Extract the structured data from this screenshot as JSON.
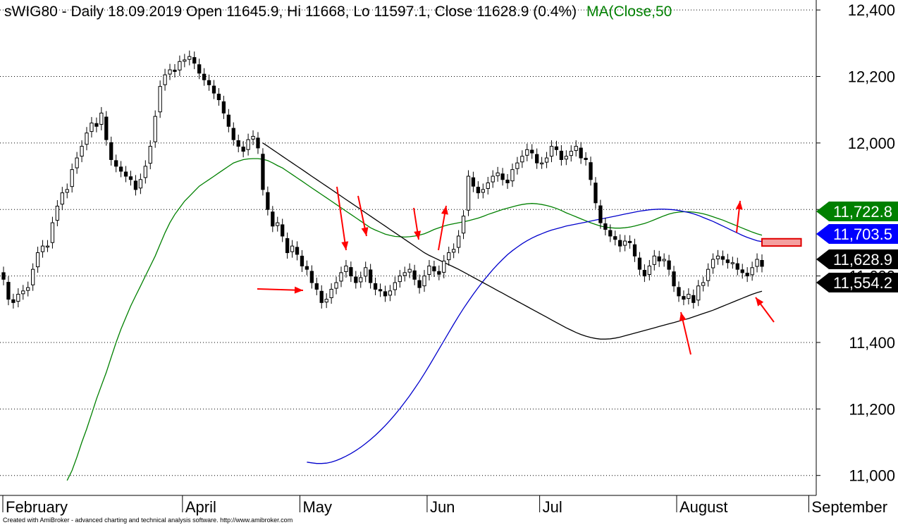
{
  "title": {
    "main": "sWIG80 - Daily 18.09.2019 Open 11645.9, Hi 11668, Lo 11597.1, Close 11628.9 (0.4%)",
    "ma": "MA(Close,50"
  },
  "footer": "Created with AmiBroker - advanced charting and technical analysis software. http://www.amibroker.com",
  "colors": {
    "ma50": "#008000",
    "ma_blue": "#0000cc",
    "ma_black": "#000000",
    "annotation": "#ff0000",
    "price_tag_green": "#008000",
    "price_tag_blue": "#0000ff",
    "price_tag_black": "#000000"
  },
  "chart_data": {
    "type": "candlestick",
    "ylim": [
      10940,
      12430
    ],
    "yticks": [
      11000,
      11200,
      11400,
      11600,
      11800,
      12000,
      12200,
      12400
    ],
    "ytick_labels": [
      "11,000",
      "11,200",
      "11,400",
      "11,600",
      "11,800",
      "12,000",
      "12,200",
      "12,400"
    ],
    "grid": "dotted horizontal",
    "months": [
      {
        "label": "February",
        "start": 0
      },
      {
        "label": "April",
        "start": 37
      },
      {
        "label": "May",
        "start": 61
      },
      {
        "label": "Jun",
        "start": 87
      },
      {
        "label": "Jul",
        "start": 110
      },
      {
        "label": "August",
        "start": 138
      },
      {
        "label": "September",
        "start": 165
      }
    ],
    "close": [
      11590,
      11530,
      11520,
      11545,
      11555,
      11565,
      11620,
      11670,
      11690,
      11690,
      11760,
      11810,
      11850,
      11860,
      11920,
      11955,
      11990,
      12030,
      12060,
      12050,
      12090,
      12010,
      11950,
      11930,
      11915,
      11900,
      11890,
      11860,
      11890,
      11930,
      11990,
      12080,
      12170,
      12205,
      12220,
      12215,
      12245,
      12250,
      12260,
      12240,
      12210,
      12190,
      12175,
      12150,
      12130,
      12090,
      12050,
      12010,
      11990,
      11975,
      12010,
      12020,
      11985,
      11860,
      11800,
      11750,
      11760,
      11720,
      11670,
      11690,
      11665,
      11630,
      11620,
      11580,
      11560,
      11520,
      11530,
      11560,
      11580,
      11610,
      11630,
      11600,
      11580,
      11595,
      11625,
      11580,
      11560,
      11555,
      11540,
      11555,
      11580,
      11600,
      11610,
      11620,
      11590,
      11565,
      11600,
      11630,
      11615,
      11605,
      11645,
      11670,
      11680,
      11720,
      11780,
      11900,
      11870,
      11850,
      11860,
      11880,
      11900,
      11910,
      11890,
      11880,
      11920,
      11940,
      11960,
      11980,
      11970,
      11940,
      11940,
      11955,
      11990,
      11980,
      11950,
      11960,
      11975,
      11990,
      11955,
      11950,
      11890,
      11820,
      11760,
      11740,
      11720,
      11710,
      11690,
      11705,
      11700,
      11660,
      11620,
      11600,
      11630,
      11660,
      11645,
      11650,
      11620,
      11570,
      11540,
      11530,
      11545,
      11520,
      11570,
      11580,
      11620,
      11650,
      11660,
      11650,
      11640,
      11640,
      11620,
      11610,
      11600,
      11625,
      11650,
      11628.9
    ],
    "series": [
      {
        "name": "MA(Close,50)",
        "color": "#008000",
        "values": [
          10985,
          11015,
          11055,
          11100,
          11140,
          11185,
          11230,
          11270,
          11310,
          11355,
          11400,
          11440,
          11475,
          11510,
          11540,
          11570,
          11600,
          11630,
          11660,
          11695,
          11730,
          11760,
          11785,
          11805,
          11825,
          11840,
          11855,
          11870,
          11880,
          11890,
          11900,
          11910,
          11920,
          11930,
          11940,
          11945,
          11950,
          11952,
          11953,
          11953,
          11951,
          11947,
          11940,
          11932,
          11925,
          11915,
          11905,
          11895,
          11885,
          11875,
          11865,
          11855,
          11845,
          11835,
          11825,
          11815,
          11805,
          11795,
          11785,
          11775,
          11765,
          11755,
          11745,
          11738,
          11732,
          11726,
          11722,
          11719,
          11718,
          11717,
          11718,
          11720,
          11723,
          11727,
          11733,
          11740,
          11745,
          11750,
          11754,
          11757,
          11760,
          11763,
          11766,
          11770,
          11774,
          11779,
          11785,
          11790,
          11795,
          11800,
          11804,
          11808,
          11812,
          11815,
          11817,
          11818,
          11817,
          11815,
          11812,
          11808,
          11803,
          11797,
          11790,
          11784,
          11778,
          11772,
          11766,
          11760,
          11755,
          11750,
          11747,
          11745,
          11744,
          11744,
          11745,
          11747,
          11750,
          11754,
          11758,
          11763,
          11769,
          11775,
          11781,
          11786,
          11790,
          11792,
          11793,
          11793,
          11792,
          11790,
          11787,
          11783,
          11778,
          11773,
          11768,
          11762,
          11756,
          11750,
          11744,
          11738,
          11732,
          11727,
          11722.8
        ]
      },
      {
        "name": "",
        "color": "#0000cc",
        "values": [
          11040,
          11038,
          11036,
          11036,
          11037,
          11040,
          11045,
          11051,
          11058,
          11066,
          11075,
          11085,
          11096,
          11108,
          11121,
          11135,
          11150,
          11166,
          11183,
          11201,
          11220,
          11240,
          11261,
          11283,
          11306,
          11330,
          11355,
          11380,
          11405,
          11430,
          11455,
          11479,
          11502,
          11524,
          11545,
          11565,
          11584,
          11602,
          11619,
          11635,
          11650,
          11664,
          11676,
          11687,
          11697,
          11706,
          11714,
          11721,
          11727,
          11733,
          11738,
          11742,
          11746,
          11750,
          11753,
          11756,
          11759,
          11762,
          11765,
          11768,
          11771,
          11774,
          11777,
          11780,
          11783,
          11786,
          11789,
          11792,
          11795,
          11797,
          11799,
          11800,
          11801,
          11801,
          11800,
          11799,
          11797,
          11794,
          11791,
          11787,
          11782,
          11776,
          11770,
          11764,
          11757,
          11750,
          11743,
          11736,
          11729,
          11722,
          11716,
          11711,
          11706,
          11703.5
        ]
      },
      {
        "name": "",
        "color": "#000000",
        "values": [
          12000,
          11990,
          11980,
          11970,
          11960,
          11950,
          11940,
          11930,
          11920,
          11910,
          11900,
          11890,
          11880,
          11870,
          11860,
          11850,
          11840,
          11830,
          11820,
          11810,
          11800,
          11790,
          11780,
          11770,
          11760,
          11750,
          11740,
          11730,
          11720,
          11710,
          11700,
          11690,
          11680,
          11670,
          11662,
          11655,
          11648,
          11641,
          11634,
          11627,
          11620,
          11612,
          11604,
          11596,
          11588,
          11580,
          11572,
          11564,
          11556,
          11548,
          11540,
          11532,
          11524,
          11516,
          11508,
          11500,
          11492,
          11484,
          11476,
          11468,
          11460,
          11452,
          11444,
          11437,
          11430,
          11424,
          11419,
          11415,
          11412,
          11410,
          11410,
          11411,
          11413,
          11416,
          11420,
          11424,
          11428,
          11432,
          11436,
          11440,
          11444,
          11448,
          11452,
          11456,
          11460,
          11464,
          11468,
          11472,
          11477,
          11482,
          11487,
          11492,
          11497,
          11503,
          11509,
          11515,
          11521,
          11527,
          11533,
          11539,
          11545,
          11550,
          11554.2
        ]
      }
    ],
    "price_tags": [
      {
        "value": 11722.8,
        "label": "11,722.8",
        "color": "#008000"
      },
      {
        "value": 11703.5,
        "label": "11,703.5",
        "color": "#0000ff"
      },
      {
        "value": 11628.9,
        "label": "11,628.9",
        "color": "#000000"
      },
      {
        "value": 11554.2,
        "label": "11,554.2",
        "color": "#000000"
      }
    ],
    "annotations": {
      "arrows": [
        [
          [
            82,
            1.2
          ],
          [
            97,
            1.2
          ]
        ],
        [
          [
            110,
            0.85
          ],
          [
            113,
            0.95
          ]
        ],
        [
          [
            116,
            0.87
          ],
          [
            119,
            0.95
          ]
        ],
        [
          [
            138,
            0.92
          ],
          [
            141,
            0.95
          ]
        ],
        [
          [
            144,
            0.9
          ],
          [
            146,
            0.95
          ]
        ],
        [
          [
            150,
            0.9
          ],
          [
            153,
            0.95
          ]
        ],
        [
          [
            160,
            0.9
          ],
          [
            163,
            0.95
          ]
        ]
      ],
      "resistance_box": {
        "x_start": 155,
        "x_end": 163,
        "y_low": 11690,
        "y_high": 11712
      }
    }
  }
}
